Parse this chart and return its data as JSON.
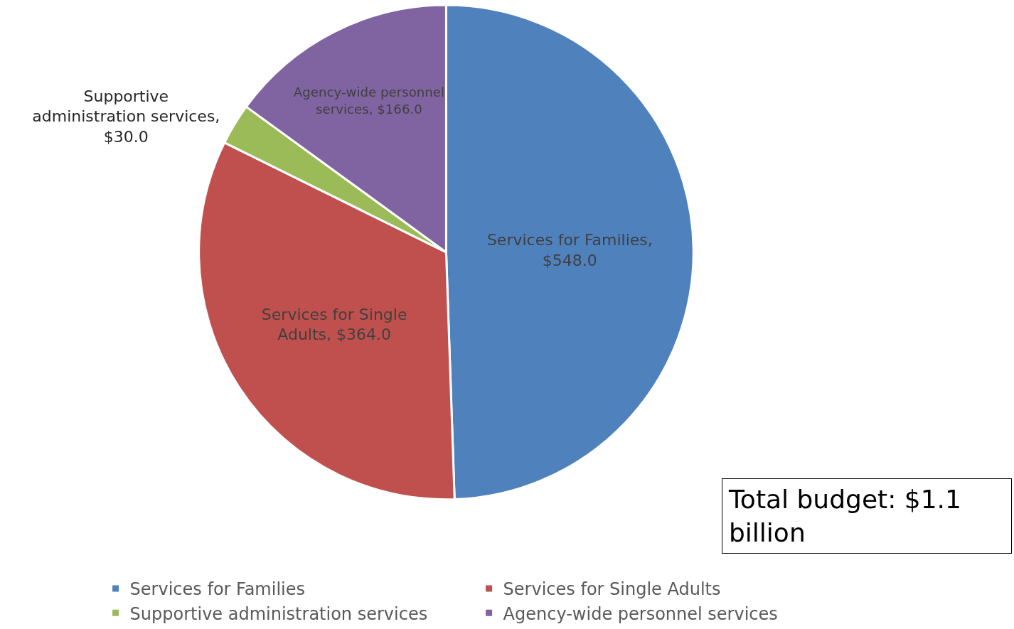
{
  "chart_data": {
    "type": "pie",
    "categories": [
      "Services for Families",
      "Services for Single Adults",
      "Supportive administration services",
      "Agency-wide personnel services"
    ],
    "values": [
      548.0,
      364.0,
      30.0,
      166.0
    ],
    "colors": [
      "#4f81bd",
      "#c0504d",
      "#9bbb59",
      "#8064a2"
    ],
    "value_labels": [
      "Services for Families, $548.0",
      "Services for Single Adults, $364.0",
      "Supportive administration services, $30.0",
      "Agency-wide personnel services, $166.0"
    ],
    "legend": "bottom",
    "annotations": [
      "Total budget: $1.1 billion"
    ]
  }
}
